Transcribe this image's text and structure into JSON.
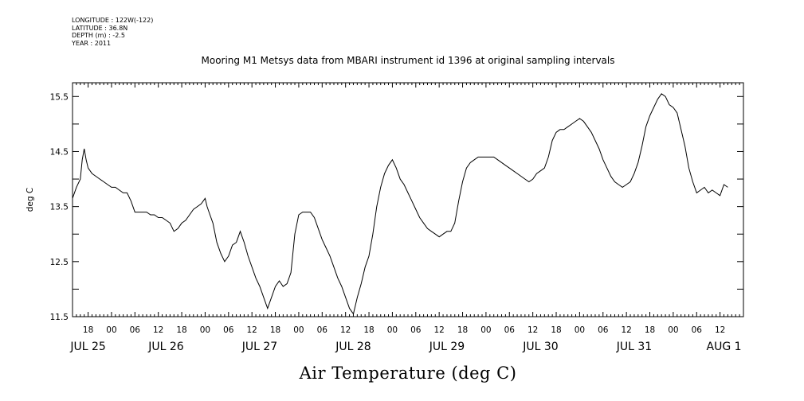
{
  "header": {
    "longitude": "LONGITUDE : 122W(-122)",
    "latitude": "LATITUDE : 36.8N",
    "depth": "DEPTH (m) : -2.5",
    "year": "YEAR : 2011"
  },
  "chart_data": {
    "type": "line",
    "title": "Mooring M1 Metsys data from MBARI instrument id 1396 at original sampling intervals",
    "xlabel": "Air Temperature (deg C)",
    "ylabel": "deg C",
    "ylim": [
      11.5,
      15.75
    ],
    "yticks": [
      11.5,
      12.5,
      13.5,
      14.5,
      15.5
    ],
    "xlim_hours": [
      14,
      186
    ],
    "x_unit": "hours after 2011-07-25 00:00",
    "hour_tick_labels": [
      {
        "h": 18,
        "label": "18"
      },
      {
        "h": 24,
        "label": "00"
      },
      {
        "h": 30,
        "label": "06"
      },
      {
        "h": 36,
        "label": "12"
      },
      {
        "h": 42,
        "label": "18"
      },
      {
        "h": 48,
        "label": "00"
      },
      {
        "h": 54,
        "label": "06"
      },
      {
        "h": 60,
        "label": "12"
      },
      {
        "h": 66,
        "label": "18"
      },
      {
        "h": 72,
        "label": "00"
      },
      {
        "h": 78,
        "label": "06"
      },
      {
        "h": 84,
        "label": "12"
      },
      {
        "h": 90,
        "label": "18"
      },
      {
        "h": 96,
        "label": "00"
      },
      {
        "h": 102,
        "label": "06"
      },
      {
        "h": 108,
        "label": "12"
      },
      {
        "h": 114,
        "label": "18"
      },
      {
        "h": 120,
        "label": "00"
      },
      {
        "h": 126,
        "label": "06"
      },
      {
        "h": 132,
        "label": "12"
      },
      {
        "h": 138,
        "label": "18"
      },
      {
        "h": 144,
        "label": "00"
      },
      {
        "h": 150,
        "label": "06"
      },
      {
        "h": 156,
        "label": "12"
      },
      {
        "h": 162,
        "label": "18"
      },
      {
        "h": 168,
        "label": "00"
      },
      {
        "h": 174,
        "label": "06"
      },
      {
        "h": 180,
        "label": "12"
      }
    ],
    "day_labels": [
      {
        "h": 18,
        "label": "JUL 25"
      },
      {
        "h": 38,
        "label": "JUL 26"
      },
      {
        "h": 62,
        "label": "JUL 27"
      },
      {
        "h": 86,
        "label": "JUL 28"
      },
      {
        "h": 110,
        "label": "JUL 29"
      },
      {
        "h": 134,
        "label": "JUL 30"
      },
      {
        "h": 158,
        "label": "JUL 31"
      },
      {
        "h": 181,
        "label": "AUG  1"
      }
    ],
    "series": [
      {
        "values": [
          [
            14.0,
            13.65
          ],
          [
            15.0,
            13.85
          ],
          [
            16.0,
            14.0
          ],
          [
            16.5,
            14.35
          ],
          [
            17.0,
            14.55
          ],
          [
            17.5,
            14.35
          ],
          [
            18.0,
            14.2
          ],
          [
            19.0,
            14.1
          ],
          [
            20.0,
            14.05
          ],
          [
            21.0,
            14.0
          ],
          [
            22.0,
            13.95
          ],
          [
            23.0,
            13.9
          ],
          [
            24.0,
            13.85
          ],
          [
            25.0,
            13.85
          ],
          [
            26.0,
            13.8
          ],
          [
            27.0,
            13.75
          ],
          [
            28.0,
            13.75
          ],
          [
            29.0,
            13.6
          ],
          [
            30.0,
            13.4
          ],
          [
            31.0,
            13.4
          ],
          [
            32.0,
            13.4
          ],
          [
            33.0,
            13.4
          ],
          [
            34.0,
            13.35
          ],
          [
            35.0,
            13.35
          ],
          [
            36.0,
            13.3
          ],
          [
            37.0,
            13.3
          ],
          [
            38.0,
            13.25
          ],
          [
            39.0,
            13.2
          ],
          [
            40.0,
            13.05
          ],
          [
            41.0,
            13.1
          ],
          [
            42.0,
            13.2
          ],
          [
            43.0,
            13.25
          ],
          [
            44.0,
            13.35
          ],
          [
            45.0,
            13.45
          ],
          [
            46.0,
            13.5
          ],
          [
            47.0,
            13.55
          ],
          [
            48.0,
            13.65
          ],
          [
            48.5,
            13.5
          ],
          [
            49.0,
            13.4
          ],
          [
            50.0,
            13.2
          ],
          [
            51.0,
            12.85
          ],
          [
            52.0,
            12.65
          ],
          [
            53.0,
            12.5
          ],
          [
            54.0,
            12.6
          ],
          [
            55.0,
            12.8
          ],
          [
            56.0,
            12.85
          ],
          [
            57.0,
            13.05
          ],
          [
            58.0,
            12.85
          ],
          [
            59.0,
            12.6
          ],
          [
            60.0,
            12.4
          ],
          [
            61.0,
            12.2
          ],
          [
            62.0,
            12.05
          ],
          [
            63.0,
            11.85
          ],
          [
            64.0,
            11.65
          ],
          [
            65.0,
            11.85
          ],
          [
            66.0,
            12.05
          ],
          [
            67.0,
            12.15
          ],
          [
            68.0,
            12.05
          ],
          [
            69.0,
            12.1
          ],
          [
            70.0,
            12.3
          ],
          [
            71.0,
            13.0
          ],
          [
            72.0,
            13.35
          ],
          [
            73.0,
            13.4
          ],
          [
            74.0,
            13.4
          ],
          [
            75.0,
            13.4
          ],
          [
            76.0,
            13.3
          ],
          [
            77.0,
            13.1
          ],
          [
            78.0,
            12.9
          ],
          [
            79.0,
            12.75
          ],
          [
            80.0,
            12.6
          ],
          [
            81.0,
            12.4
          ],
          [
            82.0,
            12.2
          ],
          [
            83.0,
            12.05
          ],
          [
            84.0,
            11.85
          ],
          [
            85.0,
            11.65
          ],
          [
            86.0,
            11.55
          ],
          [
            87.0,
            11.85
          ],
          [
            88.0,
            12.1
          ],
          [
            89.0,
            12.4
          ],
          [
            90.0,
            12.6
          ],
          [
            91.0,
            13.0
          ],
          [
            92.0,
            13.5
          ],
          [
            93.0,
            13.85
          ],
          [
            94.0,
            14.1
          ],
          [
            95.0,
            14.25
          ],
          [
            96.0,
            14.35
          ],
          [
            97.0,
            14.2
          ],
          [
            98.0,
            14.0
          ],
          [
            99.0,
            13.9
          ],
          [
            100.0,
            13.75
          ],
          [
            101.0,
            13.6
          ],
          [
            102.0,
            13.45
          ],
          [
            103.0,
            13.3
          ],
          [
            104.0,
            13.2
          ],
          [
            105.0,
            13.1
          ],
          [
            106.0,
            13.05
          ],
          [
            107.0,
            13.0
          ],
          [
            108.0,
            12.95
          ],
          [
            109.0,
            13.0
          ],
          [
            110.0,
            13.05
          ],
          [
            111.0,
            13.05
          ],
          [
            112.0,
            13.2
          ],
          [
            113.0,
            13.6
          ],
          [
            114.0,
            13.95
          ],
          [
            115.0,
            14.2
          ],
          [
            116.0,
            14.3
          ],
          [
            117.0,
            14.35
          ],
          [
            118.0,
            14.4
          ],
          [
            119.0,
            14.4
          ],
          [
            120.0,
            14.4
          ],
          [
            121.0,
            14.4
          ],
          [
            122.0,
            14.4
          ],
          [
            123.0,
            14.35
          ],
          [
            124.0,
            14.3
          ],
          [
            125.0,
            14.25
          ],
          [
            126.0,
            14.2
          ],
          [
            127.0,
            14.15
          ],
          [
            128.0,
            14.1
          ],
          [
            129.0,
            14.05
          ],
          [
            130.0,
            14.0
          ],
          [
            131.0,
            13.95
          ],
          [
            132.0,
            14.0
          ],
          [
            133.0,
            14.1
          ],
          [
            134.0,
            14.15
          ],
          [
            135.0,
            14.2
          ],
          [
            136.0,
            14.4
          ],
          [
            137.0,
            14.7
          ],
          [
            138.0,
            14.85
          ],
          [
            139.0,
            14.9
          ],
          [
            140.0,
            14.9
          ],
          [
            141.0,
            14.95
          ],
          [
            142.0,
            15.0
          ],
          [
            143.0,
            15.05
          ],
          [
            144.0,
            15.1
          ],
          [
            145.0,
            15.05
          ],
          [
            146.0,
            14.95
          ],
          [
            147.0,
            14.85
          ],
          [
            148.0,
            14.7
          ],
          [
            149.0,
            14.55
          ],
          [
            150.0,
            14.35
          ],
          [
            151.0,
            14.2
          ],
          [
            152.0,
            14.05
          ],
          [
            153.0,
            13.95
          ],
          [
            154.0,
            13.9
          ],
          [
            155.0,
            13.85
          ],
          [
            156.0,
            13.9
          ],
          [
            157.0,
            13.95
          ],
          [
            158.0,
            14.1
          ],
          [
            159.0,
            14.3
          ],
          [
            160.0,
            14.6
          ],
          [
            161.0,
            14.95
          ],
          [
            162.0,
            15.15
          ],
          [
            163.0,
            15.3
          ],
          [
            164.0,
            15.45
          ],
          [
            165.0,
            15.55
          ],
          [
            166.0,
            15.5
          ],
          [
            167.0,
            15.35
          ],
          [
            168.0,
            15.3
          ],
          [
            169.0,
            15.2
          ],
          [
            170.0,
            14.9
          ],
          [
            171.0,
            14.6
          ],
          [
            172.0,
            14.2
          ],
          [
            173.0,
            13.95
          ],
          [
            174.0,
            13.75
          ],
          [
            175.0,
            13.8
          ],
          [
            176.0,
            13.85
          ],
          [
            177.0,
            13.75
          ],
          [
            178.0,
            13.8
          ],
          [
            179.0,
            13.75
          ],
          [
            180.0,
            13.7
          ],
          [
            181.0,
            13.9
          ],
          [
            182.0,
            13.85
          ]
        ]
      }
    ]
  }
}
